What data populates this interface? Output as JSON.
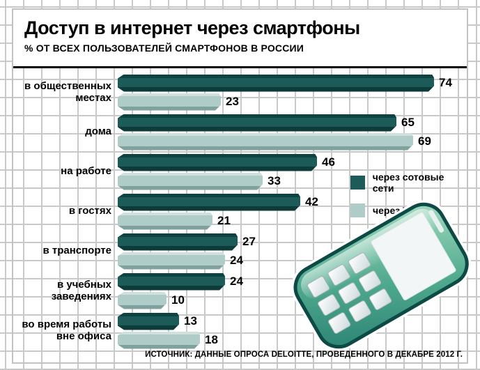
{
  "header": {
    "title": "Доступ в интернет через смартфоны",
    "subtitle": "% ОТ ВСЕХ ПОЛЬЗОВАТЕЛЕЙ СМАРТФОНОВ В РОССИИ"
  },
  "chart_data": {
    "type": "bar",
    "orientation": "horizontal",
    "title": "Доступ в интернет через смартфоны",
    "subtitle": "% ОТ ВСЕХ ПОЛЬЗОВАТЕЛЕЙ СМАРТФОНОВ В РОССИИ",
    "unit": "percent",
    "xlim": [
      0,
      80
    ],
    "grid": true,
    "value_labels": true,
    "categories": [
      "в общественных местах",
      "дома",
      "на работе",
      "в гостях",
      "в транспорте",
      "в учебных заведениях",
      "во время работы вне офиса"
    ],
    "series": [
      {
        "name": "через сотовые сети",
        "color": "#1d5b58",
        "values": [
          74,
          65,
          46,
          42,
          27,
          24,
          13
        ]
      },
      {
        "name": "через WiFi",
        "color": "#afccc8",
        "values": [
          23,
          69,
          33,
          21,
          24,
          10,
          18
        ]
      }
    ],
    "legend_position": "middle-right"
  },
  "legend": {
    "items": [
      {
        "label": "через сотовые сети",
        "color": "#1d5b58"
      },
      {
        "label": "через WiFi",
        "color": "#afccc8"
      }
    ]
  },
  "source": "ИСТОЧНИК: ДАННЫЕ ОПРОСА DELOITTE, ПРОВЕДЕННОГО В ДЕКАБРЕ 2012 Г.",
  "icons": {
    "phone": "mobile-phone-illustration"
  },
  "colors": {
    "bar_dark": "#1d5b58",
    "bar_light": "#afccc8",
    "grid_line": "#c9c9c9",
    "header_rule": "#000000",
    "phone_dark": "#0d4a45",
    "phone_light": "#9fd9bd"
  }
}
